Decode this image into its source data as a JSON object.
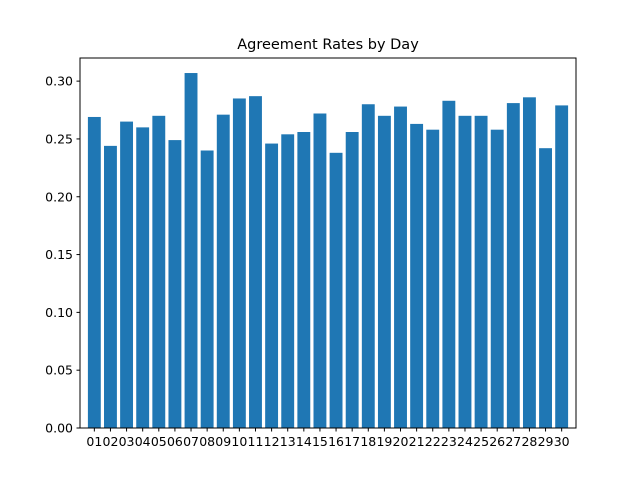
{
  "chart_data": {
    "type": "bar",
    "title": "Agreement Rates by Day",
    "xlabel": "",
    "ylabel": "",
    "categories": [
      "01",
      "02",
      "03",
      "04",
      "05",
      "06",
      "07",
      "08",
      "09",
      "10",
      "11",
      "12",
      "13",
      "14",
      "15",
      "16",
      "17",
      "18",
      "19",
      "20",
      "21",
      "22",
      "23",
      "24",
      "25",
      "26",
      "27",
      "28",
      "29",
      "30"
    ],
    "series": [
      {
        "values": [
          0.269,
          0.244,
          0.265,
          0.26,
          0.27,
          0.249,
          0.307,
          0.24,
          0.271,
          0.285,
          0.287,
          0.246,
          0.254,
          0.256,
          0.272,
          0.238,
          0.256,
          0.28,
          0.27,
          0.278,
          0.263,
          0.258,
          0.283,
          0.27,
          0.27,
          0.258,
          0.281,
          0.286,
          0.242,
          0.279
        ],
        "color": "#1f77b4"
      }
    ],
    "ylim": [
      0,
      0.32
    ],
    "yticks": [
      "0.00",
      "0.05",
      "0.10",
      "0.15",
      "0.20",
      "0.25",
      "0.30"
    ],
    "grid": false,
    "legend": "none"
  }
}
